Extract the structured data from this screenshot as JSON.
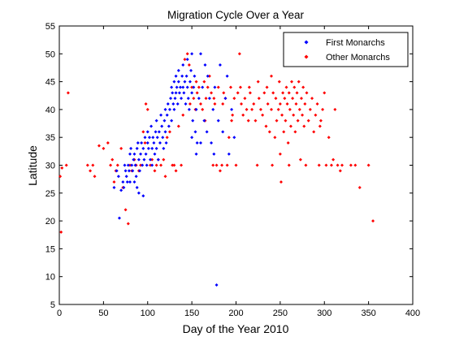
{
  "chart_data": {
    "type": "scatter",
    "title": "Migration Cycle Over a Year",
    "xlabel": "Day of the Year 2010",
    "ylabel": "Latitude",
    "xlim": [
      0,
      400
    ],
    "ylim": [
      5,
      55
    ],
    "xticks": [
      "0",
      "50",
      "100",
      "150",
      "200",
      "250",
      "300",
      "350",
      "400"
    ],
    "yticks": [
      "5",
      "10",
      "15",
      "20",
      "25",
      "30",
      "35",
      "40",
      "45",
      "50",
      "55"
    ],
    "grid": false,
    "legend_position": "top-right",
    "series": [
      {
        "name": "First Monarchs",
        "color": "#0000ff",
        "marker": "diamond",
        "points": [
          [
            62,
            26
          ],
          [
            65,
            29
          ],
          [
            67,
            28
          ],
          [
            68,
            20.5
          ],
          [
            70,
            25.5
          ],
          [
            72,
            27
          ],
          [
            73,
            26
          ],
          [
            74,
            30
          ],
          [
            75,
            29
          ],
          [
            76,
            28
          ],
          [
            77,
            27
          ],
          [
            78,
            30
          ],
          [
            79,
            29
          ],
          [
            80,
            32
          ],
          [
            80,
            27
          ],
          [
            81,
            33
          ],
          [
            82,
            30
          ],
          [
            83,
            29
          ],
          [
            84,
            31
          ],
          [
            85,
            32
          ],
          [
            85,
            27
          ],
          [
            86,
            30
          ],
          [
            87,
            28
          ],
          [
            88,
            33
          ],
          [
            88,
            26
          ],
          [
            89,
            34
          ],
          [
            90,
            31
          ],
          [
            90,
            25
          ],
          [
            91,
            29
          ],
          [
            92,
            32
          ],
          [
            93,
            34
          ],
          [
            94,
            30
          ],
          [
            95,
            33
          ],
          [
            95,
            24.5
          ],
          [
            96,
            31
          ],
          [
            97,
            35
          ],
          [
            98,
            32
          ],
          [
            99,
            30
          ],
          [
            100,
            34
          ],
          [
            100,
            36
          ],
          [
            101,
            33
          ],
          [
            102,
            35
          ],
          [
            103,
            31
          ],
          [
            104,
            37
          ],
          [
            105,
            33
          ],
          [
            105,
            30
          ],
          [
            106,
            35
          ],
          [
            107,
            34
          ],
          [
            108,
            32
          ],
          [
            109,
            36
          ],
          [
            110,
            33
          ],
          [
            110,
            38
          ],
          [
            111,
            35
          ],
          [
            112,
            31
          ],
          [
            113,
            36
          ],
          [
            114,
            34
          ],
          [
            115,
            39
          ],
          [
            116,
            37
          ],
          [
            117,
            35
          ],
          [
            118,
            33
          ],
          [
            119,
            38
          ],
          [
            120,
            36
          ],
          [
            120,
            40
          ],
          [
            121,
            34
          ],
          [
            122,
            39
          ],
          [
            123,
            41
          ],
          [
            124,
            37
          ],
          [
            125,
            40
          ],
          [
            126,
            42
          ],
          [
            127,
            38
          ],
          [
            127,
            44
          ],
          [
            128,
            43
          ],
          [
            129,
            41
          ],
          [
            130,
            45
          ],
          [
            130,
            40
          ],
          [
            131,
            42
          ],
          [
            132,
            46
          ],
          [
            132,
            43
          ],
          [
            133,
            44
          ],
          [
            134,
            41
          ],
          [
            135,
            45
          ],
          [
            135,
            47
          ],
          [
            136,
            43
          ],
          [
            137,
            44
          ],
          [
            138,
            42
          ],
          [
            139,
            46
          ],
          [
            140,
            44
          ],
          [
            140,
            48
          ],
          [
            141,
            43
          ],
          [
            142,
            45
          ],
          [
            143,
            41
          ],
          [
            144,
            46
          ],
          [
            145,
            44
          ],
          [
            145,
            49
          ],
          [
            146,
            42
          ],
          [
            147,
            40
          ],
          [
            148,
            45
          ],
          [
            149,
            47
          ],
          [
            150,
            43
          ],
          [
            150,
            50
          ],
          [
            151,
            38
          ],
          [
            152,
            44
          ],
          [
            153,
            46
          ],
          [
            154,
            36
          ],
          [
            155,
            40
          ],
          [
            156,
            34
          ],
          [
            158,
            42
          ],
          [
            160,
            50
          ],
          [
            162,
            44
          ],
          [
            164,
            38
          ],
          [
            165,
            48
          ],
          [
            167,
            36
          ],
          [
            168,
            46
          ],
          [
            170,
            42
          ],
          [
            172,
            34
          ],
          [
            174,
            40
          ],
          [
            175,
            32
          ],
          [
            176,
            44
          ],
          [
            178,
            8.5
          ],
          [
            180,
            38
          ],
          [
            182,
            48
          ],
          [
            185,
            36
          ],
          [
            188,
            42
          ],
          [
            190,
            46
          ],
          [
            192,
            32
          ],
          [
            195,
            40
          ],
          [
            198,
            35
          ],
          [
            160,
            34
          ],
          [
            155,
            32
          ],
          [
            150,
            35
          ]
        ]
      },
      {
        "name": "Other Monarchs",
        "color": "#ff0000",
        "marker": "diamond",
        "points": [
          [
            1,
            28
          ],
          [
            2,
            18
          ],
          [
            3,
            29.5
          ],
          [
            8,
            30
          ],
          [
            10,
            43
          ],
          [
            32,
            30
          ],
          [
            35,
            29
          ],
          [
            38,
            30
          ],
          [
            40,
            28
          ],
          [
            45,
            33.5
          ],
          [
            50,
            33
          ],
          [
            55,
            34
          ],
          [
            58,
            30
          ],
          [
            60,
            31
          ],
          [
            62,
            27
          ],
          [
            64,
            29
          ],
          [
            66,
            30
          ],
          [
            70,
            33
          ],
          [
            72,
            26
          ],
          [
            75,
            22
          ],
          [
            78,
            19.5
          ],
          [
            80,
            30
          ],
          [
            82,
            29
          ],
          [
            85,
            31
          ],
          [
            87,
            30
          ],
          [
            90,
            29
          ],
          [
            92,
            30
          ],
          [
            95,
            36
          ],
          [
            97,
            34
          ],
          [
            98,
            41
          ],
          [
            100,
            40
          ],
          [
            103,
            30
          ],
          [
            105,
            31
          ],
          [
            108,
            29
          ],
          [
            110,
            30
          ],
          [
            112,
            31
          ],
          [
            115,
            30
          ],
          [
            118,
            31
          ],
          [
            120,
            28
          ],
          [
            122,
            35
          ],
          [
            125,
            36
          ],
          [
            128,
            30
          ],
          [
            130,
            30
          ],
          [
            132,
            29
          ],
          [
            135,
            37
          ],
          [
            138,
            30
          ],
          [
            140,
            39
          ],
          [
            142,
            49
          ],
          [
            145,
            50
          ],
          [
            147,
            48
          ],
          [
            148,
            41
          ],
          [
            150,
            44
          ],
          [
            152,
            42
          ],
          [
            154,
            40
          ],
          [
            155,
            45
          ],
          [
            156,
            43
          ],
          [
            158,
            44
          ],
          [
            160,
            41
          ],
          [
            162,
            40
          ],
          [
            164,
            45
          ],
          [
            165,
            38
          ],
          [
            166,
            42
          ],
          [
            168,
            44
          ],
          [
            170,
            46
          ],
          [
            172,
            43
          ],
          [
            174,
            30
          ],
          [
            175,
            42
          ],
          [
            176,
            41
          ],
          [
            178,
            30
          ],
          [
            180,
            44
          ],
          [
            182,
            29
          ],
          [
            184,
            30
          ],
          [
            185,
            41
          ],
          [
            186,
            43
          ],
          [
            188,
            42
          ],
          [
            190,
            30
          ],
          [
            192,
            35
          ],
          [
            194,
            44
          ],
          [
            195,
            38
          ],
          [
            196,
            39
          ],
          [
            198,
            42
          ],
          [
            200,
            30
          ],
          [
            202,
            43
          ],
          [
            204,
            50
          ],
          [
            205,
            44
          ],
          [
            206,
            41
          ],
          [
            208,
            39
          ],
          [
            210,
            42
          ],
          [
            212,
            40
          ],
          [
            214,
            38
          ],
          [
            215,
            44
          ],
          [
            216,
            43
          ],
          [
            218,
            40
          ],
          [
            220,
            41
          ],
          [
            222,
            38
          ],
          [
            224,
            30
          ],
          [
            225,
            45
          ],
          [
            226,
            42
          ],
          [
            228,
            40
          ],
          [
            230,
            39
          ],
          [
            232,
            43
          ],
          [
            234,
            37
          ],
          [
            235,
            44
          ],
          [
            236,
            41
          ],
          [
            238,
            36
          ],
          [
            240,
            40
          ],
          [
            240,
            46
          ],
          [
            241,
            30
          ],
          [
            242,
            43
          ],
          [
            244,
            35
          ],
          [
            245,
            42
          ],
          [
            246,
            38
          ],
          [
            248,
            40
          ],
          [
            249,
            45
          ],
          [
            250,
            41
          ],
          [
            250,
            32
          ],
          [
            251,
            27
          ],
          [
            252,
            39
          ],
          [
            253,
            43
          ],
          [
            254,
            36
          ],
          [
            255,
            42
          ],
          [
            255,
            50
          ],
          [
            256,
            38
          ],
          [
            257,
            44
          ],
          [
            258,
            41
          ],
          [
            259,
            34
          ],
          [
            260,
            43
          ],
          [
            260,
            30
          ],
          [
            261,
            40
          ],
          [
            262,
            37
          ],
          [
            263,
            45
          ],
          [
            264,
            42
          ],
          [
            265,
            39
          ],
          [
            266,
            44
          ],
          [
            267,
            36
          ],
          [
            268,
            41
          ],
          [
            269,
            43
          ],
          [
            270,
            38
          ],
          [
            271,
            45
          ],
          [
            272,
            40
          ],
          [
            273,
            31
          ],
          [
            274,
            42
          ],
          [
            275,
            39
          ],
          [
            276,
            44
          ],
          [
            277,
            37
          ],
          [
            278,
            41
          ],
          [
            279,
            30
          ],
          [
            280,
            43
          ],
          [
            282,
            38
          ],
          [
            284,
            40
          ],
          [
            286,
            42
          ],
          [
            288,
            36
          ],
          [
            290,
            39
          ],
          [
            292,
            41
          ],
          [
            294,
            30
          ],
          [
            295,
            37
          ],
          [
            296,
            38
          ],
          [
            298,
            40
          ],
          [
            300,
            43
          ],
          [
            302,
            30
          ],
          [
            305,
            35
          ],
          [
            308,
            30
          ],
          [
            310,
            31
          ],
          [
            312,
            40
          ],
          [
            315,
            30
          ],
          [
            318,
            29
          ],
          [
            320,
            30
          ],
          [
            330,
            30
          ],
          [
            335,
            30
          ],
          [
            340,
            26
          ],
          [
            350,
            30
          ],
          [
            355,
            20
          ]
        ]
      }
    ]
  }
}
